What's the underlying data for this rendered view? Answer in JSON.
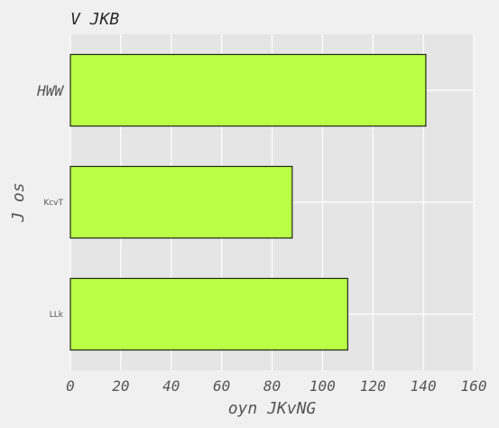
{
  "chart_data": {
    "type": "bar",
    "orientation": "horizontal",
    "title": "V JKB",
    "xlabel": "oyn JKvNG",
    "ylabel": "J os",
    "categories": [
      "HWW",
      "KcvT",
      "LLk"
    ],
    "values": [
      141,
      88,
      110
    ],
    "xlim": [
      0,
      160
    ],
    "xticks": [
      0,
      20,
      40,
      60,
      80,
      100,
      120,
      140,
      160
    ],
    "grid": true,
    "bar_color": "#b8ff46",
    "edge_color": "#000000",
    "plot_background": "#e5e5e5",
    "grid_color": "#ffffff"
  }
}
